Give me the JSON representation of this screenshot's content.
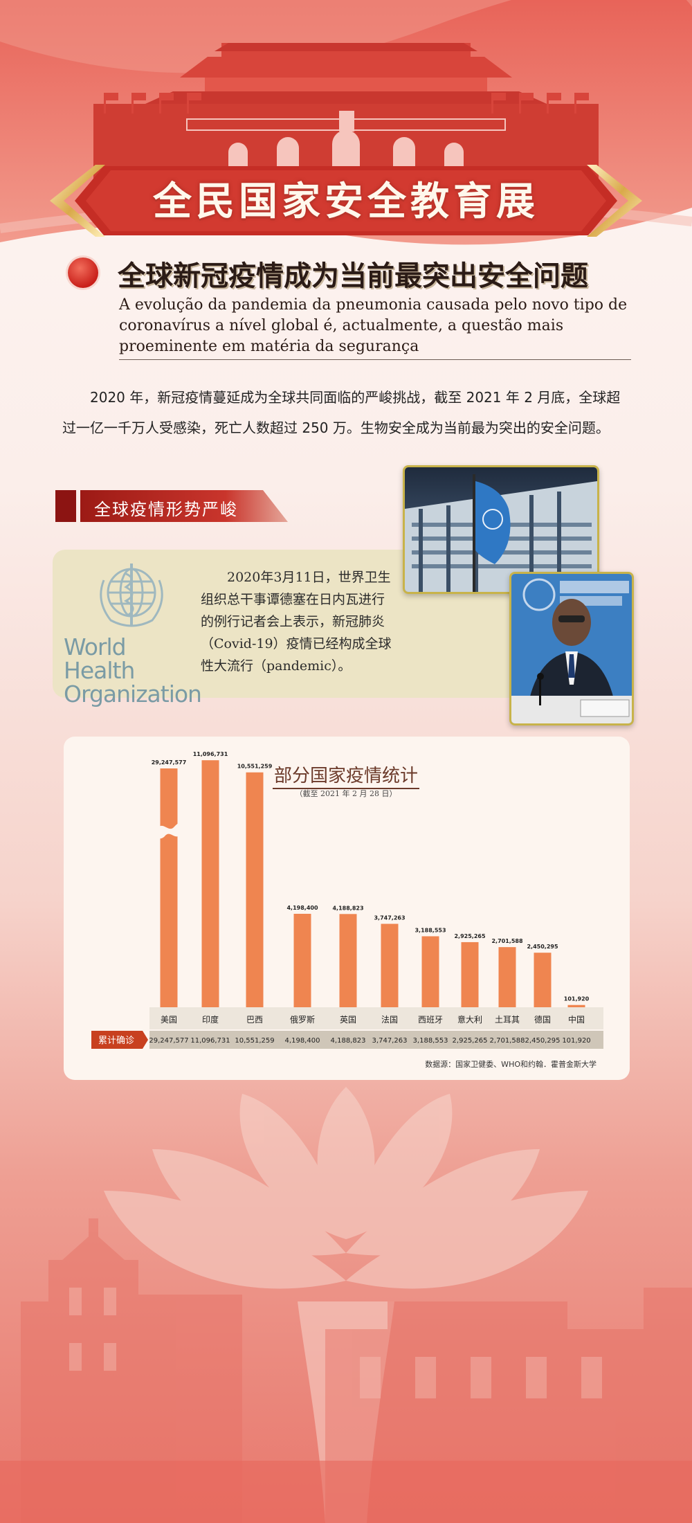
{
  "banner": {
    "title": "全民国家安全教育展"
  },
  "section": {
    "title": "全球新冠疫情成为当前最突出安全问题",
    "subtitle_pt": "A evolução da pandemia da pneumonia causada pelo novo tipo de coronavírus a nível global é, actualmente, a questão mais proeminente em matéria da segurança"
  },
  "intro": "2020 年，新冠疫情蔓延成为全球共同面临的严峻挑战，截至 2021 年 2 月底，全球超过一亿一千万人受感染，死亡人数超过 250 万。生物安全成为当前最为突出的安全问题。",
  "subsection": {
    "title": "全球疫情形势严峻"
  },
  "who": {
    "logo_text": "World Health Organization",
    "paragraph": "2020年3月11日，世界卫生组织总干事谭德塞在日内瓦进行的例行记者会上表示，新冠肺炎（Covid-19）疫情已经构成全球性大流行（pandemic）。"
  },
  "chart_data": {
    "type": "bar",
    "title": "部分国家疫情统计",
    "subtitle": "（截至 2021 年 2 月 28 日）",
    "row_label": "累计确诊",
    "categories": [
      "美国",
      "印度",
      "巴西",
      "俄罗斯",
      "英国",
      "法国",
      "西班牙",
      "意大利",
      "土耳其",
      "德国",
      "中国"
    ],
    "values": [
      29247577,
      11096731,
      10551259,
      4198400,
      4188823,
      3747263,
      3188553,
      2925265,
      2701588,
      2450295,
      101920
    ],
    "value_labels": [
      "29,247,577",
      "11,096,731",
      "10,551,259",
      "4,198,400",
      "4,188,823",
      "3,747,263",
      "3,188,553",
      "2,925,265",
      "2,701,588",
      "2,450,295",
      "101,920"
    ],
    "axis_break": true,
    "bar_color": "#ef8550",
    "source": "数据源：国家卫健委、WHO和约翰．霍普金斯大学"
  }
}
